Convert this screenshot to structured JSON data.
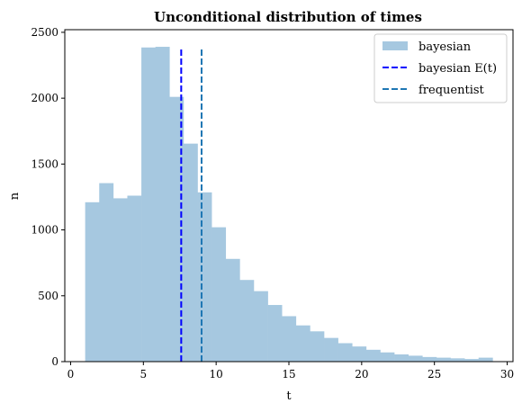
{
  "chart_data": {
    "type": "bar",
    "title": "Unconditional distribution of times",
    "xlabel": "t",
    "ylabel": "n",
    "xlim": [
      -0.4,
      30.4
    ],
    "ylim": [
      0,
      2520
    ],
    "xticks": [
      0,
      5,
      10,
      15,
      20,
      25,
      30
    ],
    "yticks": [
      0,
      500,
      1000,
      1500,
      2000,
      2500
    ],
    "grid": false,
    "legend_position": "top-right",
    "histogram": {
      "name": "bayesian",
      "color": "#a6c8e0",
      "bin_edges": [
        1.0,
        1.966,
        2.931,
        3.897,
        4.862,
        5.828,
        6.793,
        7.759,
        8.724,
        9.69,
        10.655,
        11.621,
        12.586,
        13.552,
        14.517,
        15.483,
        16.448,
        17.414,
        18.379,
        19.345,
        20.31,
        21.276,
        22.241,
        23.207,
        24.172,
        25.138,
        26.103,
        27.069,
        28.034,
        29.0
      ],
      "counts": [
        1210,
        1355,
        1240,
        1260,
        2385,
        2390,
        2010,
        1655,
        1285,
        1020,
        780,
        620,
        535,
        430,
        345,
        275,
        230,
        180,
        140,
        115,
        90,
        70,
        55,
        45,
        35,
        30,
        25,
        20,
        30
      ]
    },
    "vlines": [
      {
        "name": "bayesian E(t)",
        "x": 7.6,
        "color": "#0000ff",
        "style": "dashed"
      },
      {
        "name": "frequentist",
        "x": 9.0,
        "color": "#1f77b4",
        "style": "dashed"
      }
    ]
  }
}
